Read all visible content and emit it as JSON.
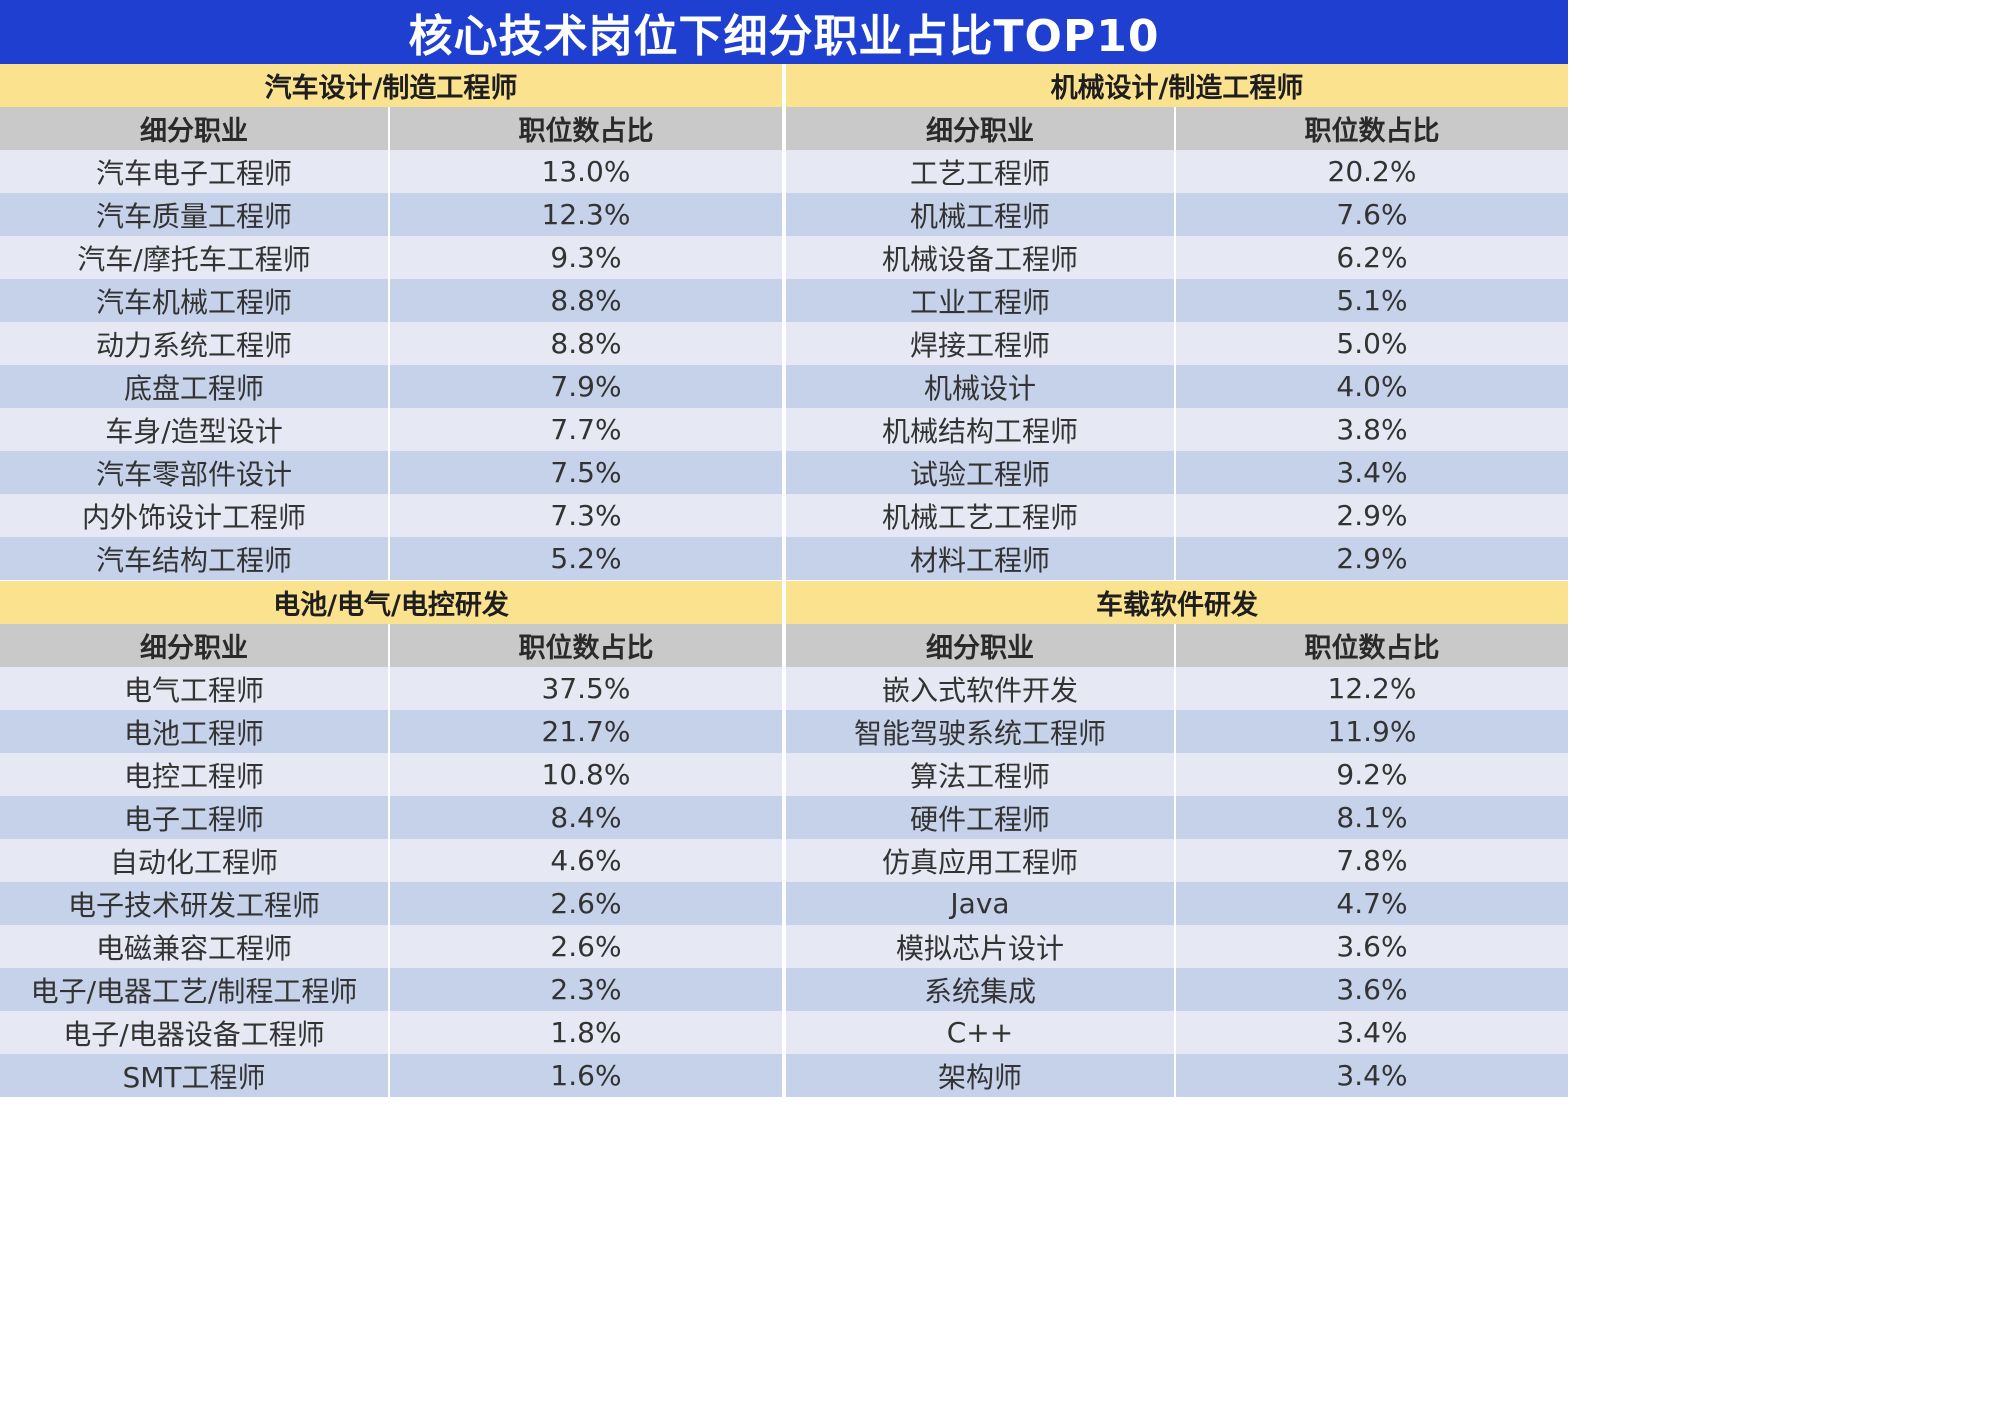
{
  "title": "核心技术岗位下细分职业占比TOP10",
  "colors": {
    "title_bg": "#1f3fd0",
    "section_header_bg": "#fbe28f",
    "column_header_bg": "#c9c9c9",
    "row_light": "#e6e9f3",
    "row_dark": "#c6d2ea"
  },
  "chart_data": [
    {
      "type": "table",
      "title": "汽车设计/制造工程师",
      "columns": [
        "细分职业",
        "职位数占比"
      ],
      "rows": [
        [
          "汽车电子工程师",
          "13.0%"
        ],
        [
          "汽车质量工程师",
          "12.3%"
        ],
        [
          "汽车/摩托车工程师",
          "9.3%"
        ],
        [
          "汽车机械工程师",
          "8.8%"
        ],
        [
          "动力系统工程师",
          "8.8%"
        ],
        [
          "底盘工程师",
          "7.9%"
        ],
        [
          "车身/造型设计",
          "7.7%"
        ],
        [
          "汽车零部件设计",
          "7.5%"
        ],
        [
          "内外饰设计工程师",
          "7.3%"
        ],
        [
          "汽车结构工程师",
          "5.2%"
        ]
      ]
    },
    {
      "type": "table",
      "title": "机械设计/制造工程师",
      "columns": [
        "细分职业",
        "职位数占比"
      ],
      "rows": [
        [
          "工艺工程师",
          "20.2%"
        ],
        [
          "机械工程师",
          "7.6%"
        ],
        [
          "机械设备工程师",
          "6.2%"
        ],
        [
          "工业工程师",
          "5.1%"
        ],
        [
          "焊接工程师",
          "5.0%"
        ],
        [
          "机械设计",
          "4.0%"
        ],
        [
          "机械结构工程师",
          "3.8%"
        ],
        [
          "试验工程师",
          "3.4%"
        ],
        [
          "机械工艺工程师",
          "2.9%"
        ],
        [
          "材料工程师",
          "2.9%"
        ]
      ]
    },
    {
      "type": "table",
      "title": "电池/电气/电控研发",
      "columns": [
        "细分职业",
        "职位数占比"
      ],
      "rows": [
        [
          "电气工程师",
          "37.5%"
        ],
        [
          "电池工程师",
          "21.7%"
        ],
        [
          "电控工程师",
          "10.8%"
        ],
        [
          "电子工程师",
          "8.4%"
        ],
        [
          "自动化工程师",
          "4.6%"
        ],
        [
          "电子技术研发工程师",
          "2.6%"
        ],
        [
          "电磁兼容工程师",
          "2.6%"
        ],
        [
          "电子/电器工艺/制程工程师",
          "2.3%"
        ],
        [
          "电子/电器设备工程师",
          "1.8%"
        ],
        [
          "SMT工程师",
          "1.6%"
        ]
      ]
    },
    {
      "type": "table",
      "title": "车载软件研发",
      "columns": [
        "细分职业",
        "职位数占比"
      ],
      "rows": [
        [
          "嵌入式软件开发",
          "12.2%"
        ],
        [
          "智能驾驶系统工程师",
          "11.9%"
        ],
        [
          "算法工程师",
          "9.2%"
        ],
        [
          "硬件工程师",
          "8.1%"
        ],
        [
          "仿真应用工程师",
          "7.8%"
        ],
        [
          "Java",
          "4.7%"
        ],
        [
          "模拟芯片设计",
          "3.6%"
        ],
        [
          "系统集成",
          "3.6%"
        ],
        [
          "C++",
          "3.4%"
        ],
        [
          "架构师",
          "3.4%"
        ]
      ]
    }
  ]
}
